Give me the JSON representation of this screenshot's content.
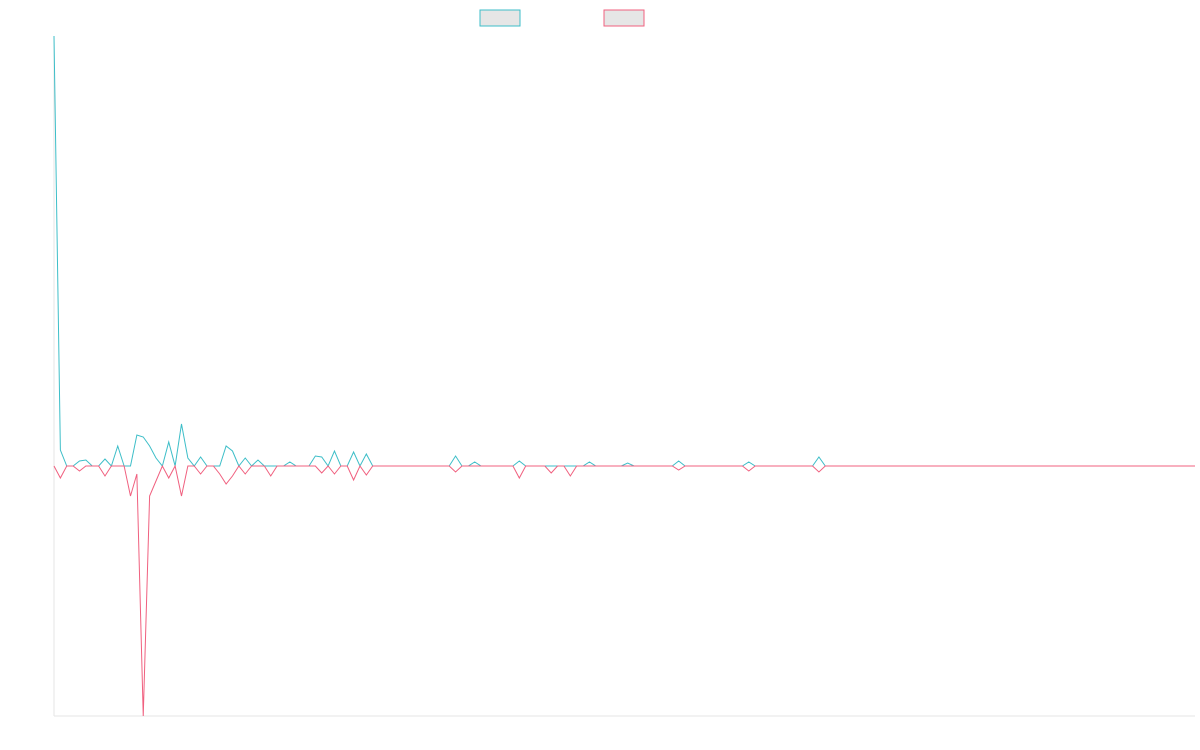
{
  "chart_data": {
    "type": "line",
    "ylim": [
      -250,
      430
    ],
    "series": [
      {
        "color": "#3dbec8",
        "values": [
          430,
          16,
          0,
          0,
          5,
          6,
          0,
          0,
          7,
          0,
          20,
          0,
          0,
          31,
          29,
          20,
          8,
          0,
          24,
          0,
          42,
          8,
          0,
          9,
          0,
          0,
          0,
          20,
          15,
          0,
          8,
          0,
          6,
          0,
          0,
          0,
          0,
          4,
          0,
          0,
          0,
          10,
          9,
          0,
          15,
          0,
          0,
          14,
          0,
          12,
          0,
          0,
          0,
          0,
          0,
          0,
          0,
          0,
          0,
          0,
          0,
          0,
          0,
          10,
          0,
          0,
          4,
          0,
          0,
          0,
          0,
          0,
          0,
          5,
          0,
          0,
          0,
          0,
          0,
          0,
          0,
          0,
          0,
          0,
          4,
          0,
          0,
          0,
          0,
          0,
          3,
          0,
          0,
          0,
          0,
          0,
          0,
          0,
          5,
          0,
          0,
          0,
          0,
          0,
          0,
          0,
          0,
          0,
          0,
          4,
          0,
          0,
          0,
          0,
          0,
          0,
          0,
          0,
          0,
          0,
          9,
          0,
          0,
          0,
          0,
          0,
          0,
          0,
          0,
          0,
          0,
          0,
          0,
          0,
          0,
          0,
          0,
          0,
          0,
          0,
          0,
          0,
          0,
          0,
          0,
          0,
          0,
          0,
          0,
          0,
          0,
          0,
          0,
          0,
          0,
          0,
          0,
          0,
          0,
          0,
          0,
          0,
          0,
          0,
          0,
          0,
          0,
          0,
          0,
          0,
          0,
          0,
          0,
          0,
          0,
          0,
          0,
          0,
          0,
          0
        ]
      },
      {
        "color": "#f0607f",
        "values": [
          0,
          -12,
          0,
          0,
          -5,
          0,
          0,
          0,
          -10,
          0,
          0,
          0,
          -30,
          -8,
          -250,
          -30,
          -15,
          0,
          -12,
          0,
          -30,
          0,
          0,
          -8,
          0,
          0,
          -8,
          -18,
          -10,
          0,
          -8,
          0,
          0,
          0,
          -10,
          0,
          0,
          0,
          0,
          0,
          0,
          0,
          -7,
          0,
          -8,
          0,
          0,
          -14,
          0,
          -9,
          0,
          0,
          0,
          0,
          0,
          0,
          0,
          0,
          0,
          0,
          0,
          0,
          0,
          -6,
          0,
          0,
          0,
          0,
          0,
          0,
          0,
          0,
          0,
          -12,
          0,
          0,
          0,
          0,
          -7,
          0,
          0,
          -10,
          0,
          0,
          0,
          0,
          0,
          0,
          0,
          0,
          0,
          0,
          0,
          0,
          0,
          0,
          0,
          0,
          -4,
          0,
          0,
          0,
          0,
          0,
          0,
          0,
          0,
          0,
          0,
          -5,
          0,
          0,
          0,
          0,
          0,
          0,
          0,
          0,
          0,
          0,
          -6,
          0,
          0,
          0,
          0,
          0,
          0,
          0,
          0,
          0,
          0,
          0,
          0,
          0,
          0,
          0,
          0,
          0,
          0,
          0,
          0,
          0,
          0,
          0,
          0,
          0,
          0,
          0,
          0,
          0,
          0,
          0,
          0,
          0,
          0,
          0,
          0,
          0,
          0,
          0,
          0,
          0,
          0,
          0,
          0,
          0,
          0,
          0,
          0,
          0,
          0,
          0,
          0,
          0,
          0,
          0,
          0,
          0,
          0,
          0
        ]
      }
    ]
  }
}
